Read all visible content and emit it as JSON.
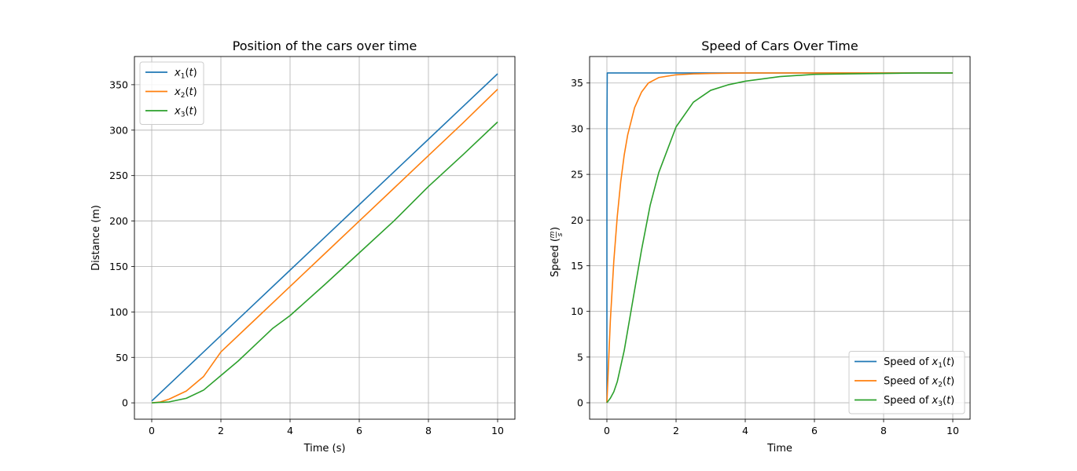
{
  "chart_data": [
    {
      "type": "line",
      "title": "Position of the cars over time",
      "xlabel": "Time (s)",
      "ylabel": "Distance (m)",
      "xlim": [
        -0.5,
        10.5
      ],
      "ylim": [
        -18,
        381
      ],
      "xticks": [
        0,
        2,
        4,
        6,
        8,
        10
      ],
      "yticks": [
        0,
        50,
        100,
        150,
        200,
        250,
        300,
        350
      ],
      "grid": true,
      "legend_position": "top-left",
      "series": [
        {
          "name": "x1(t)",
          "name_base": "x",
          "name_sub": "1",
          "name_rest": "(t)",
          "color": "#1f77b4",
          "x": [
            0,
            1,
            2,
            3,
            4,
            5,
            6,
            7,
            8,
            9,
            10
          ],
          "y": [
            2,
            38,
            74,
            110,
            146,
            182,
            218,
            254,
            290,
            326,
            362
          ]
        },
        {
          "name": "x2(t)",
          "name_base": "x",
          "name_sub": "2",
          "name_rest": "(t)",
          "color": "#ff7f0e",
          "x": [
            0,
            0.25,
            0.5,
            1,
            1.5,
            2,
            3,
            4,
            5,
            6,
            7,
            8,
            9,
            10
          ],
          "y": [
            0,
            1,
            4,
            13,
            29,
            56,
            92,
            128,
            164,
            200,
            236,
            272,
            308,
            345
          ]
        },
        {
          "name": "x3(t)",
          "name_base": "x",
          "name_sub": "3",
          "name_rest": "(t)",
          "color": "#2ca02c",
          "x": [
            0,
            0.5,
            1,
            1.5,
            2,
            2.5,
            3,
            3.5,
            4,
            5,
            6,
            7,
            8,
            9,
            10
          ],
          "y": [
            0,
            1,
            5,
            14,
            30,
            46,
            64,
            82,
            96,
            130,
            165,
            200,
            238,
            273,
            309
          ]
        }
      ]
    },
    {
      "type": "line",
      "title": "Speed of Cars Over Time",
      "xlabel": "Time",
      "ylabel_prefix": "Speed (",
      "ylabel_num": "m",
      "ylabel_den": "s",
      "ylabel_suffix": ")",
      "xlim": [
        -0.5,
        10.5
      ],
      "ylim": [
        -1.8,
        37.9
      ],
      "xticks": [
        0,
        2,
        4,
        6,
        8,
        10
      ],
      "yticks": [
        0,
        5,
        10,
        15,
        20,
        25,
        30,
        35
      ],
      "grid": true,
      "legend_position": "bottom-right",
      "series": [
        {
          "name": "Speed of x1(t)",
          "name_base": "Speed of x",
          "name_sub": "1",
          "name_rest": "(t)",
          "color": "#1f77b4",
          "x": [
            0,
            0.001,
            0.01,
            10
          ],
          "y": [
            0,
            30,
            36.1,
            36.1
          ]
        },
        {
          "name": "Speed of x2(t)",
          "name_base": "Speed of x",
          "name_sub": "2",
          "name_rest": "(t)",
          "color": "#ff7f0e",
          "x": [
            0,
            0.1,
            0.2,
            0.3,
            0.4,
            0.5,
            0.6,
            0.8,
            1,
            1.2,
            1.5,
            2,
            2.5,
            3,
            4,
            5,
            6,
            8,
            10
          ],
          "y": [
            0,
            9,
            15.5,
            20.4,
            24.2,
            27.1,
            29.3,
            32.3,
            34,
            35,
            35.6,
            35.9,
            36.0,
            36.05,
            36.1,
            36.1,
            36.1,
            36.1,
            36.1
          ]
        },
        {
          "name": "Speed of x3(t)",
          "name_base": "Speed of x",
          "name_sub": "3",
          "name_rest": "(t)",
          "color": "#2ca02c",
          "x": [
            0,
            0.1,
            0.2,
            0.3,
            0.5,
            0.75,
            1,
            1.25,
            1.5,
            2,
            2.5,
            3,
            3.5,
            4,
            5,
            6,
            7,
            8,
            9,
            10
          ],
          "y": [
            0,
            0.5,
            1.2,
            2.3,
            5.7,
            11.2,
            16.7,
            21.6,
            25.2,
            30.2,
            32.9,
            34.2,
            34.8,
            35.2,
            35.7,
            35.95,
            36.0,
            36.05,
            36.1,
            36.1
          ]
        }
      ]
    }
  ]
}
